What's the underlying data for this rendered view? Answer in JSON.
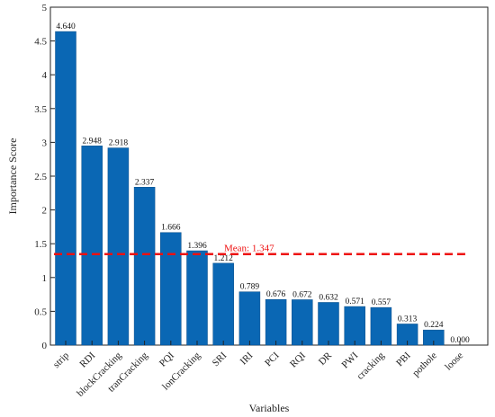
{
  "chart_data": {
    "type": "bar",
    "title": "",
    "xlabel": "Variables",
    "ylabel": "Importance Score",
    "categories": [
      "strip",
      "RDI",
      "blockCracking",
      "tranCracking",
      "PQI",
      "lonCracking",
      "SRI",
      "IRI",
      "PCI",
      "RQI",
      "DR",
      "PWI",
      "cracking",
      "PBI",
      "pothole",
      "loose"
    ],
    "values": [
      4.64,
      2.948,
      2.918,
      2.337,
      1.666,
      1.396,
      1.212,
      0.789,
      0.676,
      0.672,
      0.632,
      0.571,
      0.557,
      0.313,
      0.224,
      0.0
    ],
    "value_labels": [
      "4.640",
      "2.948",
      "2.918",
      "2.337",
      "1.666",
      "1.396",
      "1.212",
      "0.789",
      "0.676",
      "0.672",
      "0.632",
      "0.571",
      "0.557",
      "0.313",
      "0.224",
      "0.000"
    ],
    "ylim": [
      0,
      5
    ],
    "yticks": [
      "0",
      "0.5",
      "1",
      "1.5",
      "2",
      "2.5",
      "3",
      "3.5",
      "4",
      "4.5",
      "5"
    ],
    "mean_value": 1.347,
    "mean_label": "Mean: 1.347",
    "grid": false,
    "colors": {
      "bar": "#0a67b4",
      "mean_line": "#ee1111",
      "axis": "#222222"
    }
  }
}
